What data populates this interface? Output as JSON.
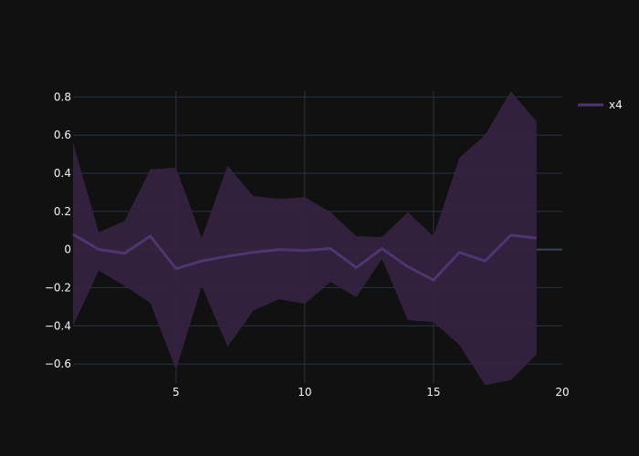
{
  "chart_data": {
    "type": "line",
    "title": "",
    "xlabel": "",
    "ylabel": "",
    "xlim": [
      1,
      20
    ],
    "ylim": [
      -0.7,
      0.83
    ],
    "x_ticks": [
      5,
      10,
      15,
      20
    ],
    "x_tick_labels": [
      "5",
      "10",
      "15",
      "20"
    ],
    "y_ticks": [
      0.8,
      0.6,
      0.4,
      0.2,
      0,
      -0.2,
      -0.4,
      -0.6
    ],
    "y_tick_labels": [
      "0.8",
      "0.6",
      "0.4",
      "0.2",
      "0",
      "−0.2",
      "−0.4",
      "−0.6"
    ],
    "grid": true,
    "legend_position": "top-right",
    "colors": {
      "background": "#111111",
      "grid": "#283442",
      "zeroline": "#3a4452",
      "line": "#4f3670",
      "band": "#35233f"
    },
    "series": [
      {
        "name": "x4",
        "x": [
          1,
          2,
          3,
          4,
          5,
          6,
          7,
          8,
          9,
          10,
          11,
          12,
          13,
          14,
          15,
          16,
          17,
          18,
          19
        ],
        "values": [
          0.08,
          0.0,
          -0.02,
          0.07,
          -0.1,
          -0.06,
          -0.035,
          -0.015,
          0.0,
          -0.005,
          0.005,
          -0.095,
          0.005,
          -0.09,
          -0.16,
          -0.015,
          -0.06,
          0.075,
          0.06
        ],
        "upper": [
          0.56,
          0.09,
          0.15,
          0.42,
          0.43,
          0.06,
          0.44,
          0.28,
          0.265,
          0.275,
          0.195,
          0.07,
          0.065,
          0.195,
          0.07,
          0.48,
          0.6,
          0.83,
          0.67
        ],
        "lower": [
          -0.4,
          -0.11,
          -0.19,
          -0.28,
          -0.63,
          -0.19,
          -0.51,
          -0.32,
          -0.26,
          -0.285,
          -0.17,
          -0.25,
          -0.05,
          -0.37,
          -0.38,
          -0.5,
          -0.71,
          -0.685,
          -0.55
        ]
      }
    ]
  }
}
